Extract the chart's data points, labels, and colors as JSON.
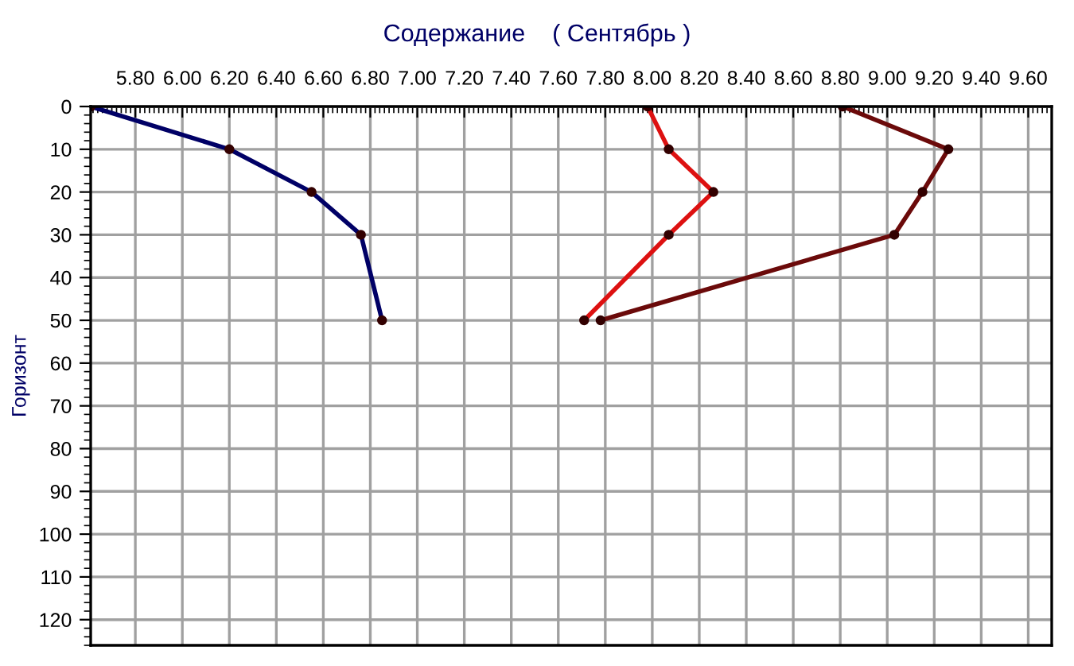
{
  "chart_data": {
    "type": "line",
    "title": "Содержание    ( Сентябрь )",
    "ylabel": "Горизонт",
    "series": [
      {
        "color": "#000066",
        "x": [
          5.61,
          6.2,
          6.55,
          6.76,
          6.85
        ],
        "values": [
          0,
          10,
          20,
          30,
          50
        ]
      },
      {
        "color": "#dd1111",
        "x": [
          7.98,
          8.07,
          8.26,
          8.07,
          7.71
        ],
        "values": [
          0,
          10,
          20,
          30,
          50
        ]
      },
      {
        "color": "#6b0a0a",
        "x": [
          8.81,
          9.26,
          9.15,
          9.03,
          7.78
        ],
        "values": [
          0,
          10,
          20,
          30,
          50
        ]
      }
    ],
    "xlim": [
      5.61,
      9.7
    ],
    "ylim": [
      126,
      0
    ],
    "xticks": [
      {
        "value": 5.8,
        "label": "5.80"
      },
      {
        "value": 6.0,
        "label": "6.00"
      },
      {
        "value": 6.2,
        "label": "6.20"
      },
      {
        "value": 6.4,
        "label": "6.40"
      },
      {
        "value": 6.6,
        "label": "6.60"
      },
      {
        "value": 6.8,
        "label": "6.80"
      },
      {
        "value": 7.0,
        "label": "7.00"
      },
      {
        "value": 7.2,
        "label": "7.20"
      },
      {
        "value": 7.4,
        "label": "7.40"
      },
      {
        "value": 7.6,
        "label": "7.60"
      },
      {
        "value": 7.8,
        "label": "7.80"
      },
      {
        "value": 8.0,
        "label": "8.00"
      },
      {
        "value": 8.2,
        "label": "8.20"
      },
      {
        "value": 8.4,
        "label": "8.40"
      },
      {
        "value": 8.6,
        "label": "8.60"
      },
      {
        "value": 8.8,
        "label": "8.80"
      },
      {
        "value": 9.0,
        "label": "9.00"
      },
      {
        "value": 9.2,
        "label": "9.20"
      },
      {
        "value": 9.4,
        "label": "9.40"
      },
      {
        "value": 9.6,
        "label": "9.60"
      }
    ],
    "yticks": [
      0,
      10,
      20,
      30,
      40,
      50,
      60,
      70,
      80,
      90,
      100,
      110,
      120
    ],
    "grid": true,
    "legend": false,
    "marker": "circle",
    "line_style": "solid"
  }
}
